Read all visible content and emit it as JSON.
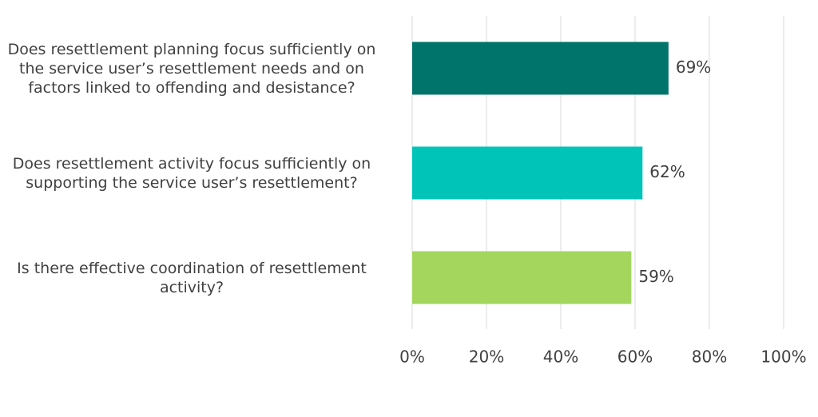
{
  "chart_data": {
    "type": "bar",
    "orientation": "horizontal",
    "categories": [
      "Does resettlement planning focus sufficiently on the service user’s resettlement needs and on factors linked to offending and desistance?",
      "Does resettlement activity focus sufficiently on supporting the service user’s resettlement?",
      "Is there effective coordination of resettlement activity?"
    ],
    "values": [
      69,
      62,
      59
    ],
    "value_labels": [
      "69%",
      "62%",
      "59%"
    ],
    "colors": [
      "#00746b",
      "#00c4b8",
      "#a4d65e"
    ],
    "xlim": [
      0,
      100
    ],
    "xticks": [
      {
        "value": 0,
        "label": "0%"
      },
      {
        "value": 20,
        "label": "20%"
      },
      {
        "value": 40,
        "label": "40%"
      },
      {
        "value": 60,
        "label": "60%"
      },
      {
        "value": 80,
        "label": "80%"
      },
      {
        "value": 100,
        "label": "100%"
      }
    ],
    "grid": true
  }
}
